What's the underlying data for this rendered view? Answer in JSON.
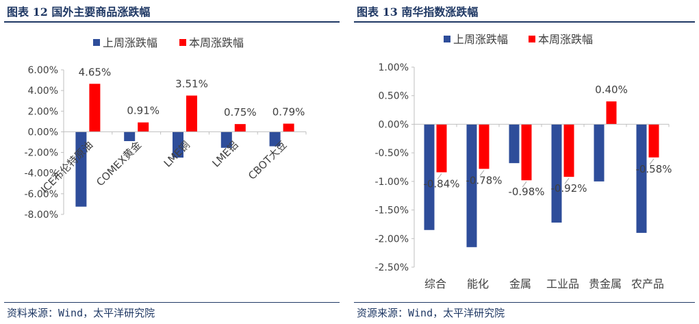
{
  "charts": [
    {
      "id": "left",
      "title": "图表 12 国外主要商品涨跌幅",
      "source": "资料来源：Wind，太平洋研究院",
      "chart_data": {
        "type": "bar",
        "categories": [
          "ICE布伦特原油",
          "COMEX黄金",
          "LME铜",
          "LME铝",
          "CBOT大豆"
        ],
        "series": [
          {
            "name": "上周涨跌幅",
            "values": [
              -7.25,
              -0.9,
              -2.5,
              -1.55,
              -1.4
            ],
            "color": "#2e4d9a"
          },
          {
            "name": "本周涨跌幅",
            "values": [
              4.65,
              0.91,
              3.51,
              0.75,
              0.79
            ],
            "color": "#ff0000"
          }
        ],
        "data_labels": [
          {
            "series": 1,
            "index": 0,
            "text": "4.65%"
          },
          {
            "series": 1,
            "index": 1,
            "text": "0.91%"
          },
          {
            "series": 1,
            "index": 2,
            "text": "3.51%"
          },
          {
            "series": 1,
            "index": 3,
            "text": "0.75%"
          },
          {
            "series": 1,
            "index": 4,
            "text": "0.79%"
          }
        ],
        "yticks": [
          "6.00%",
          "4.00%",
          "2.00%",
          "0.00%",
          "-2.00%",
          "-4.00%",
          "-6.00%",
          "-8.00%"
        ],
        "ytick_values": [
          6,
          4,
          2,
          0,
          -2,
          -4,
          -6,
          -8
        ],
        "ylim": [
          -8,
          6
        ],
        "xlabel_rotation": "rotated",
        "legend": "top-left",
        "grid": false
      }
    },
    {
      "id": "right",
      "title": "图表 13 南华指数涨跌幅",
      "source": "资源来源：Wind，太平洋研究院",
      "chart_data": {
        "type": "bar",
        "categories": [
          "综合",
          "能化",
          "金属",
          "工业品",
          "贵金属",
          "农产品"
        ],
        "series": [
          {
            "name": "上周涨跌幅",
            "values": [
              -1.85,
              -2.15,
              -0.68,
              -1.72,
              -1.0,
              -1.9
            ],
            "color": "#2e4d9a"
          },
          {
            "name": "本周涨跌幅",
            "values": [
              -0.84,
              -0.78,
              -0.98,
              -0.92,
              0.4,
              -0.58
            ],
            "color": "#ff0000"
          }
        ],
        "data_labels": [
          {
            "series": 1,
            "index": 0,
            "text": "-0.84%"
          },
          {
            "series": 1,
            "index": 1,
            "text": "-0.78%"
          },
          {
            "series": 1,
            "index": 2,
            "text": "-0.98%"
          },
          {
            "series": 1,
            "index": 3,
            "text": "-0.92%"
          },
          {
            "series": 1,
            "index": 4,
            "text": "0.40%"
          },
          {
            "series": 1,
            "index": 5,
            "text": "-0.58%"
          }
        ],
        "yticks": [
          "1.00%",
          "0.50%",
          "0.00%",
          "-0.50%",
          "-1.00%",
          "-1.50%",
          "-2.00%",
          "-2.50%"
        ],
        "ytick_values": [
          1,
          0.5,
          0,
          -0.5,
          -1,
          -1.5,
          -2,
          -2.5
        ],
        "ylim": [
          -2.5,
          1
        ],
        "xlabel_rotation": "horizontal",
        "legend": "top-left",
        "grid": false
      }
    }
  ]
}
